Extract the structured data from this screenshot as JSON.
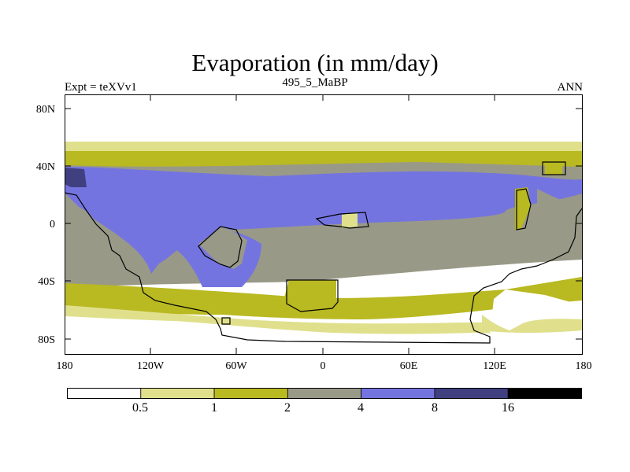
{
  "title": "Evaporation (in mm/day)",
  "subtitle_left": "Expt = teXVv1",
  "subtitle_center": "495_5_MaBP",
  "subtitle_right": "ANN",
  "y_ticks": [
    "80N",
    "40N",
    "0",
    "40S",
    "80S"
  ],
  "x_ticks": [
    "180",
    "120W",
    "60W",
    "0",
    "60E",
    "120E",
    "180"
  ],
  "colorbar": {
    "levels": [
      "0.5",
      "1",
      "2",
      "4",
      "8",
      "16"
    ],
    "colors": [
      "#ffffff",
      "#e0e08c",
      "#b9b922",
      "#999988",
      "#7474e0",
      "#404080",
      "#000000"
    ]
  },
  "map_colors": {
    "lt": "#e0e08c",
    "yl": "#b9b922",
    "gr": "#999988",
    "bl": "#7474e0",
    "db": "#404080",
    "coast": "#000000"
  }
}
